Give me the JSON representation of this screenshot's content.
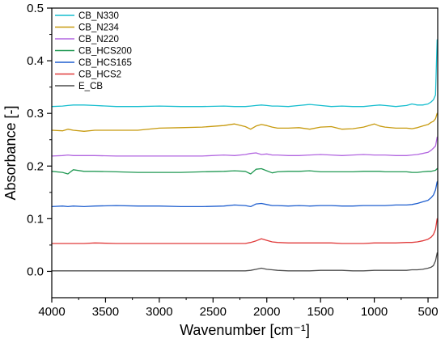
{
  "chart_data": {
    "type": "line",
    "title": "",
    "xlabel": "Wavenumber [cm⁻¹]",
    "ylabel": "Absorbance [-]",
    "xlim": [
      4000,
      410
    ],
    "x_reversed": true,
    "ylim": [
      -0.05,
      0.5
    ],
    "x_ticks": [
      4000,
      3500,
      3000,
      2500,
      2000,
      1500,
      1000,
      500
    ],
    "y_ticks": [
      0.0,
      0.1,
      0.2,
      0.3,
      0.4,
      0.5
    ],
    "x_tick_labels": [
      "4000",
      "3500",
      "3000",
      "2500",
      "2000",
      "1500",
      "1000",
      "500"
    ],
    "y_tick_labels": [
      "0.0",
      "0.1",
      "0.2",
      "0.3",
      "0.4",
      "0.5"
    ],
    "grid": false,
    "legend_position": "top-left",
    "x": [
      4000,
      3900,
      3850,
      3800,
      3700,
      3600,
      3400,
      3200,
      3000,
      2800,
      2600,
      2400,
      2300,
      2200,
      2150,
      2100,
      2050,
      2000,
      1950,
      1900,
      1800,
      1700,
      1600,
      1500,
      1400,
      1300,
      1200,
      1100,
      1000,
      950,
      900,
      800,
      700,
      650,
      600,
      550,
      500,
      470,
      450,
      430,
      415
    ],
    "series": [
      {
        "name": "CB_N330",
        "color": "#17becf",
        "values": [
          0.313,
          0.314,
          0.315,
          0.316,
          0.316,
          0.315,
          0.313,
          0.313,
          0.314,
          0.313,
          0.313,
          0.314,
          0.313,
          0.313,
          0.314,
          0.315,
          0.316,
          0.315,
          0.314,
          0.314,
          0.313,
          0.315,
          0.317,
          0.315,
          0.313,
          0.314,
          0.313,
          0.313,
          0.315,
          0.316,
          0.315,
          0.313,
          0.315,
          0.318,
          0.316,
          0.316,
          0.318,
          0.322,
          0.326,
          0.335,
          0.44
        ]
      },
      {
        "name": "CB_N234",
        "color": "#c79a0e",
        "values": [
          0.268,
          0.267,
          0.27,
          0.268,
          0.266,
          0.268,
          0.268,
          0.268,
          0.272,
          0.273,
          0.274,
          0.277,
          0.28,
          0.275,
          0.27,
          0.276,
          0.279,
          0.277,
          0.274,
          0.272,
          0.272,
          0.273,
          0.27,
          0.274,
          0.275,
          0.27,
          0.271,
          0.274,
          0.28,
          0.276,
          0.274,
          0.272,
          0.272,
          0.271,
          0.273,
          0.276,
          0.279,
          0.283,
          0.285,
          0.29,
          0.3
        ]
      },
      {
        "name": "CB_N220",
        "color": "#b266e0",
        "values": [
          0.219,
          0.22,
          0.221,
          0.22,
          0.22,
          0.22,
          0.219,
          0.219,
          0.219,
          0.219,
          0.219,
          0.221,
          0.22,
          0.222,
          0.224,
          0.225,
          0.222,
          0.223,
          0.221,
          0.221,
          0.22,
          0.22,
          0.221,
          0.222,
          0.221,
          0.22,
          0.221,
          0.222,
          0.221,
          0.221,
          0.221,
          0.22,
          0.22,
          0.221,
          0.222,
          0.224,
          0.226,
          0.23,
          0.234,
          0.238,
          0.255
        ]
      },
      {
        "name": "CB_HCS200",
        "color": "#229954",
        "values": [
          0.19,
          0.188,
          0.185,
          0.193,
          0.19,
          0.19,
          0.189,
          0.188,
          0.188,
          0.188,
          0.189,
          0.19,
          0.191,
          0.19,
          0.185,
          0.194,
          0.195,
          0.191,
          0.187,
          0.189,
          0.19,
          0.19,
          0.191,
          0.189,
          0.189,
          0.189,
          0.189,
          0.19,
          0.19,
          0.19,
          0.189,
          0.189,
          0.189,
          0.188,
          0.188,
          0.189,
          0.19,
          0.19,
          0.191,
          0.192,
          0.195
        ]
      },
      {
        "name": "CB_HCS165",
        "color": "#1f5fcf",
        "values": [
          0.123,
          0.124,
          0.123,
          0.124,
          0.123,
          0.124,
          0.125,
          0.124,
          0.124,
          0.123,
          0.123,
          0.124,
          0.126,
          0.125,
          0.123,
          0.128,
          0.129,
          0.127,
          0.125,
          0.125,
          0.124,
          0.125,
          0.124,
          0.125,
          0.125,
          0.124,
          0.124,
          0.125,
          0.125,
          0.125,
          0.125,
          0.126,
          0.126,
          0.127,
          0.129,
          0.132,
          0.135,
          0.14,
          0.145,
          0.155,
          0.17
        ]
      },
      {
        "name": "CB_HCS2",
        "color": "#e03a3a",
        "values": [
          0.053,
          0.053,
          0.053,
          0.053,
          0.053,
          0.054,
          0.053,
          0.053,
          0.053,
          0.053,
          0.053,
          0.053,
          0.053,
          0.053,
          0.055,
          0.058,
          0.062,
          0.059,
          0.056,
          0.055,
          0.054,
          0.054,
          0.054,
          0.054,
          0.054,
          0.053,
          0.053,
          0.053,
          0.054,
          0.054,
          0.054,
          0.054,
          0.055,
          0.055,
          0.056,
          0.058,
          0.061,
          0.065,
          0.07,
          0.08,
          0.1
        ]
      },
      {
        "name": "E_CB",
        "color": "#4d4d4d",
        "values": [
          0.001,
          0.001,
          0.001,
          0.001,
          0.001,
          0.001,
          0.001,
          0.001,
          0.001,
          0.001,
          0.001,
          0.001,
          0.001,
          0.001,
          0.002,
          0.004,
          0.006,
          0.004,
          0.003,
          0.002,
          0.001,
          0.001,
          0.001,
          0.002,
          0.002,
          0.002,
          0.001,
          0.001,
          0.002,
          0.002,
          0.002,
          0.002,
          0.002,
          0.003,
          0.003,
          0.004,
          0.006,
          0.008,
          0.011,
          0.02,
          0.035
        ]
      }
    ]
  }
}
